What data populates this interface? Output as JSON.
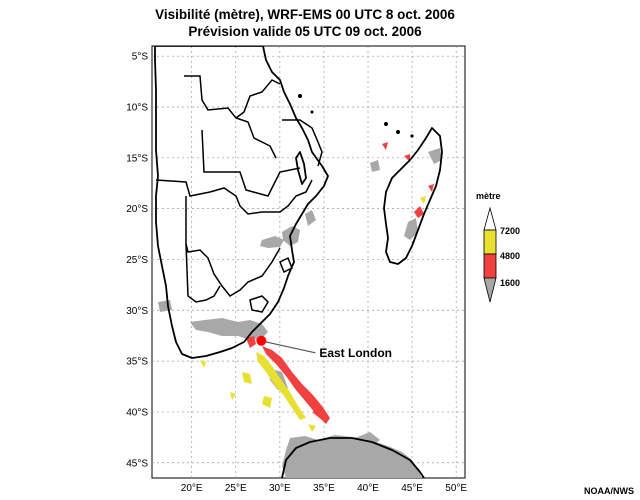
{
  "title": {
    "line1": "Visibilité (mètre), WRF-EMS 00 UTC 8 oct. 2006",
    "line2": "Prévision valide 05 UTC 09 oct. 2006"
  },
  "map": {
    "lon_range": [
      15.5,
      51
    ],
    "lat_range": [
      -46.5,
      -4
    ],
    "lat_ticks": [
      {
        "value": -5,
        "label": "5°S"
      },
      {
        "value": -10,
        "label": "10°S"
      },
      {
        "value": -15,
        "label": "15°S"
      },
      {
        "value": -20,
        "label": "20°S"
      },
      {
        "value": -25,
        "label": "25°S"
      },
      {
        "value": -30,
        "label": "30°S"
      },
      {
        "value": -35,
        "label": "35°S"
      },
      {
        "value": -40,
        "label": "40°S"
      },
      {
        "value": -45,
        "label": "45°S"
      }
    ],
    "lon_ticks": [
      {
        "value": 20,
        "label": "20°E"
      },
      {
        "value": 25,
        "label": "25°E"
      },
      {
        "value": 30,
        "label": "30°E"
      },
      {
        "value": 35,
        "label": "35°E"
      },
      {
        "value": 40,
        "label": "40°E"
      },
      {
        "value": 45,
        "label": "45°E"
      },
      {
        "value": 50,
        "label": "50°E"
      }
    ],
    "marker": {
      "lon": 27.9,
      "lat": -33.0,
      "label": "East London",
      "color": "#ff0000"
    }
  },
  "legend": {
    "unit": "mètre",
    "levels": [
      {
        "value": "7200",
        "color": "#e8e030"
      },
      {
        "value": "4800",
        "color": "#f04040"
      },
      {
        "value": "1600",
        "color": "#a8a8a8"
      }
    ]
  },
  "credit": "NOAA/NWS"
}
